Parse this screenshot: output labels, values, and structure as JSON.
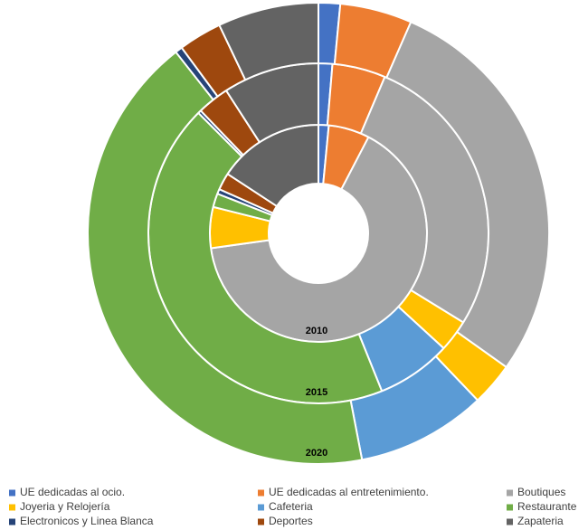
{
  "chart_data": {
    "type": "multi_donut",
    "categories": [
      "UE dedicadas al ocio.",
      "UE dedicadas al entretenimiento.",
      "Boutiques",
      "Joyeria y Relojería",
      "Cafeteria",
      "Restaurante",
      "Electronicos y Linea Blanca",
      "Deportes",
      "Zapateria"
    ],
    "colors": [
      "#4472c4",
      "#ed7d31",
      "#a5a5a5",
      "#ffc000",
      "#5b9bd5",
      "#70ad47",
      "#264478",
      "#9e480e",
      "#636363"
    ],
    "series": [
      {
        "name": "2010",
        "values": [
          1.5,
          6,
          64,
          6,
          0,
          2,
          0.7,
          2.5,
          15.5
        ]
      },
      {
        "name": "2015",
        "values": [
          1.3,
          5,
          27,
          3,
          7,
          43,
          0.3,
          3,
          9
        ]
      },
      {
        "name": "2020",
        "values": [
          1.5,
          5,
          28,
          3,
          9,
          42,
          0.5,
          3,
          7
        ]
      }
    ]
  }
}
